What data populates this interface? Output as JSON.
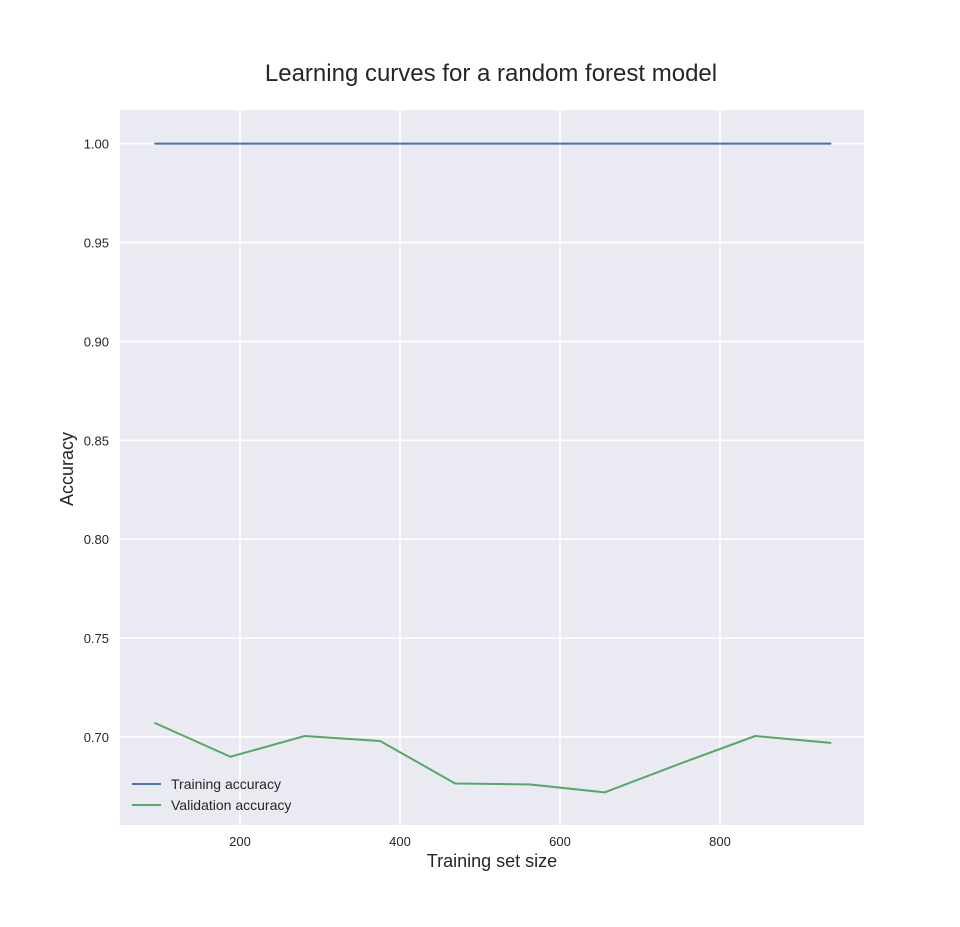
{
  "chart_data": {
    "type": "line",
    "title": "Learning curves for a random forest model",
    "xlabel": "Training set size",
    "ylabel": "Accuracy",
    "x": [
      94,
      188,
      281,
      375,
      469,
      563,
      656,
      750,
      844,
      938
    ],
    "series": [
      {
        "name": "Training accuracy",
        "color": "#4c72b0",
        "values": [
          1.0,
          1.0,
          1.0,
          1.0,
          1.0,
          1.0,
          1.0,
          1.0,
          1.0,
          1.0
        ]
      },
      {
        "name": "Validation accuracy",
        "color": "#55a868",
        "values": [
          0.707,
          0.69,
          0.7005,
          0.698,
          0.6765,
          0.676,
          0.672,
          0.6865,
          0.7005,
          0.697
        ]
      }
    ],
    "xlim": [
      50,
      980
    ],
    "ylim": [
      0.6555,
      1.017
    ],
    "xticks": [
      200,
      400,
      600,
      800
    ],
    "xtick_labels": [
      "200",
      "400",
      "600",
      "800"
    ],
    "yticks": [
      0.7,
      0.75,
      0.8,
      0.85,
      0.9,
      0.95,
      1.0
    ],
    "ytick_labels": [
      "0.70",
      "0.75",
      "0.80",
      "0.85",
      "0.90",
      "0.95",
      "1.00"
    ],
    "grid": true,
    "legend_position": "lower-left",
    "colors": {
      "plot_background": "#eaeaf2",
      "grid": "#ffffff"
    }
  }
}
